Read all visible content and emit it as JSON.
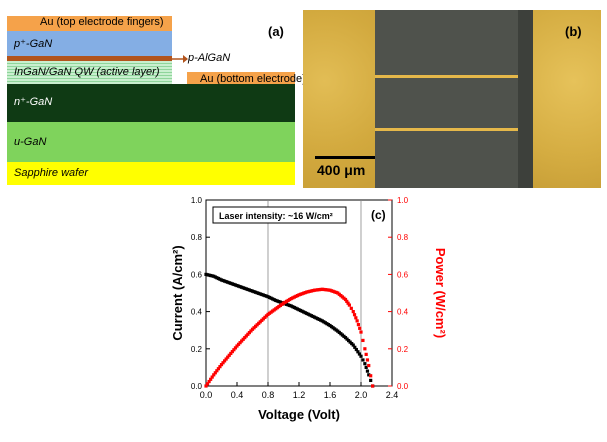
{
  "panel_a": {
    "label": "(a)",
    "layers": {
      "au_top": "Au (top electrode fingers)",
      "p_gan": "p⁺-GaN",
      "p_algan": "p-AlGaN",
      "qw": "InGaN/GaN QW (active layer)",
      "au_bottom": "Au (bottom electrode)",
      "n_gan": "n⁺-GaN",
      "u_gan": "u-GaN",
      "sapphire": "Sapphire wafer"
    },
    "colors": {
      "au": "#f5a24a",
      "p_gan": "#84aee4",
      "p_algan": "#b2541c",
      "qw": "#bfe8c7",
      "n_gan": "#0f3a14",
      "u_gan": "#7fd35c",
      "sapphire": "#ffff00"
    }
  },
  "panel_b": {
    "label": "(b)",
    "scale_bar": "400 μm",
    "colors": {
      "gold": "#d8b045",
      "device": "#4a4d48",
      "finger": "#e5b84a"
    }
  },
  "panel_c": {
    "label": "(c)",
    "annotation": "Laser intensity: ~16 W/cm²",
    "xlabel": "Voltage (Volt)",
    "ylabel_left": "Current (A/cm²)",
    "ylabel_right": "Power (W/cm²)",
    "x_ticks": [
      "0.0",
      "0.4",
      "0.8",
      "1.2",
      "1.6",
      "2.0",
      "2.4"
    ],
    "y_ticks": [
      "0.0",
      "0.2",
      "0.4",
      "0.6",
      "0.8",
      "1.0"
    ],
    "colors": {
      "current": "#000000",
      "power": "#ff0000"
    }
  },
  "chart_data": {
    "type": "scatter",
    "title": "",
    "annotation": "Laser intensity: ~16 W/cm²",
    "xlabel": "Voltage (Volt)",
    "ylabel": "Current (A/cm²)",
    "y2label": "Power (W/cm²)",
    "xlim": [
      0.0,
      2.4
    ],
    "ylim": [
      0.0,
      1.0
    ],
    "y2lim": [
      0.0,
      1.0
    ],
    "grid": false,
    "vertical_lines": [
      0.8,
      2.0
    ],
    "series": [
      {
        "axis": "left",
        "color": "#000000",
        "x": [
          0.0,
          0.1,
          0.2,
          0.3,
          0.4,
          0.5,
          0.6,
          0.7,
          0.8,
          0.9,
          1.0,
          1.1,
          1.2,
          1.3,
          1.4,
          1.5,
          1.6,
          1.7,
          1.8,
          1.9,
          2.0,
          2.05,
          2.1,
          2.15
        ],
        "y": [
          0.6,
          0.59,
          0.57,
          0.555,
          0.54,
          0.525,
          0.51,
          0.495,
          0.48,
          0.46,
          0.445,
          0.43,
          0.41,
          0.39,
          0.37,
          0.35,
          0.325,
          0.295,
          0.26,
          0.22,
          0.16,
          0.12,
          0.06,
          0.0
        ]
      },
      {
        "axis": "right",
        "color": "#ff0000",
        "x": [
          0.0,
          0.1,
          0.2,
          0.3,
          0.4,
          0.5,
          0.6,
          0.7,
          0.8,
          0.9,
          1.0,
          1.1,
          1.2,
          1.3,
          1.4,
          1.5,
          1.6,
          1.7,
          1.8,
          1.85,
          1.9,
          1.95,
          2.0,
          2.05,
          2.1,
          2.15
        ],
        "y": [
          0.0,
          0.06,
          0.115,
          0.165,
          0.215,
          0.26,
          0.305,
          0.345,
          0.385,
          0.415,
          0.445,
          0.47,
          0.49,
          0.505,
          0.515,
          0.52,
          0.515,
          0.5,
          0.465,
          0.435,
          0.4,
          0.35,
          0.29,
          0.2,
          0.11,
          0.0
        ]
      }
    ]
  }
}
